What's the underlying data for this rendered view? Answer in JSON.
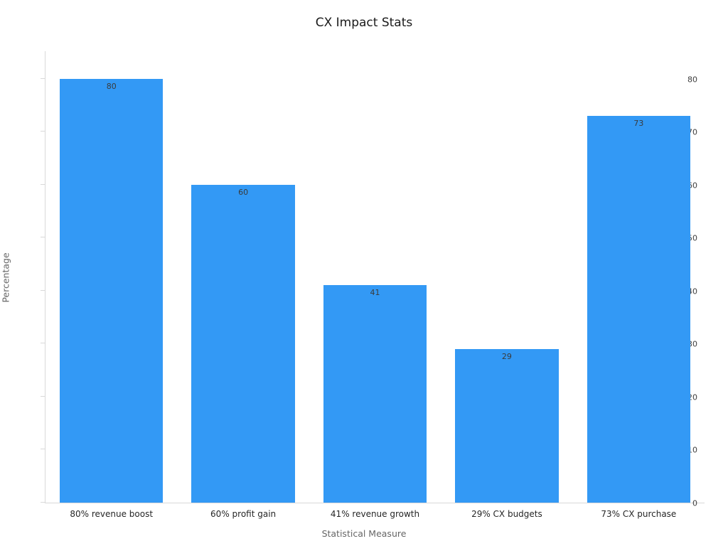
{
  "chart_data": {
    "type": "bar",
    "title": "CX Impact Stats",
    "xlabel": "Statistical Measure",
    "ylabel": "Percentage",
    "categories": [
      "80% revenue boost",
      "60% profit gain",
      "41% revenue growth",
      "29% CX budgets",
      "73% CX purchase"
    ],
    "values": [
      80,
      60,
      41,
      29,
      73
    ],
    "data_labels": [
      "80",
      "60",
      "41",
      "29",
      "73"
    ],
    "yticks": [
      0,
      10,
      20,
      30,
      40,
      50,
      60,
      70,
      80
    ],
    "ylim": [
      0,
      85.2
    ],
    "grid": false,
    "legend": false,
    "bar_color": "#3399f5",
    "axis_color": "#d9d9d9",
    "label_color": "#3a3a3a"
  }
}
